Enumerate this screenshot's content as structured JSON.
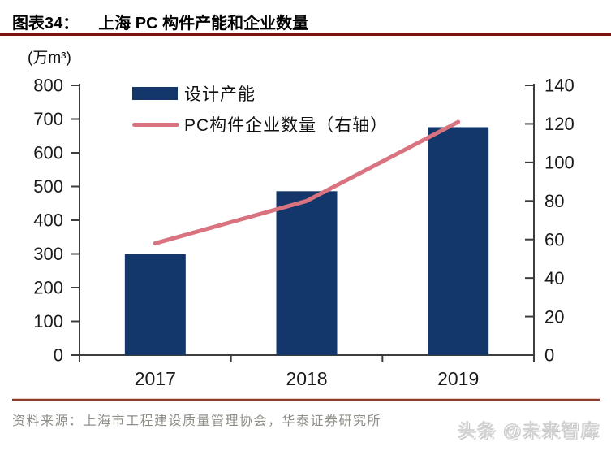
{
  "header": {
    "figure_label": "图表34：",
    "title": "上海 PC 构件产能和企业数量"
  },
  "chart_data": {
    "type": "bar",
    "categories": [
      "2017",
      "2018",
      "2019"
    ],
    "series": [
      {
        "name": "设计产能",
        "type": "bar",
        "axis": "left",
        "color": "#14376b",
        "values": [
          300,
          486,
          676
        ]
      },
      {
        "name": "PC构件企业数量（右轴）",
        "type": "line",
        "axis": "right",
        "color": "#d9737f",
        "values": [
          58,
          80,
          121
        ]
      }
    ],
    "left_axis": {
      "unit_label": "(万m³)",
      "min": 0,
      "max": 800,
      "step": 100,
      "tick_labels": [
        "800",
        "700",
        "600",
        "500",
        "400",
        "300",
        "200",
        "100",
        "0"
      ]
    },
    "right_axis": {
      "min": 0,
      "max": 140,
      "step": 20,
      "tick_labels": [
        "140",
        "120",
        "100",
        "80",
        "60",
        "40",
        "20",
        "0"
      ]
    },
    "grid": false,
    "legend_position": "top-left"
  },
  "footer": {
    "source": "资料来源：上海市工程建设质量管理协会，华泰证券研究所",
    "watermark": "头条 @未来智库"
  },
  "colors": {
    "title_rule": "#7c130d",
    "footer_rule": "#8b392b",
    "axis": "#3d3d3d",
    "tick_text": "#1a1a1a",
    "source_text": "#8f8f88",
    "watermark_text": "#d2d2d2"
  }
}
